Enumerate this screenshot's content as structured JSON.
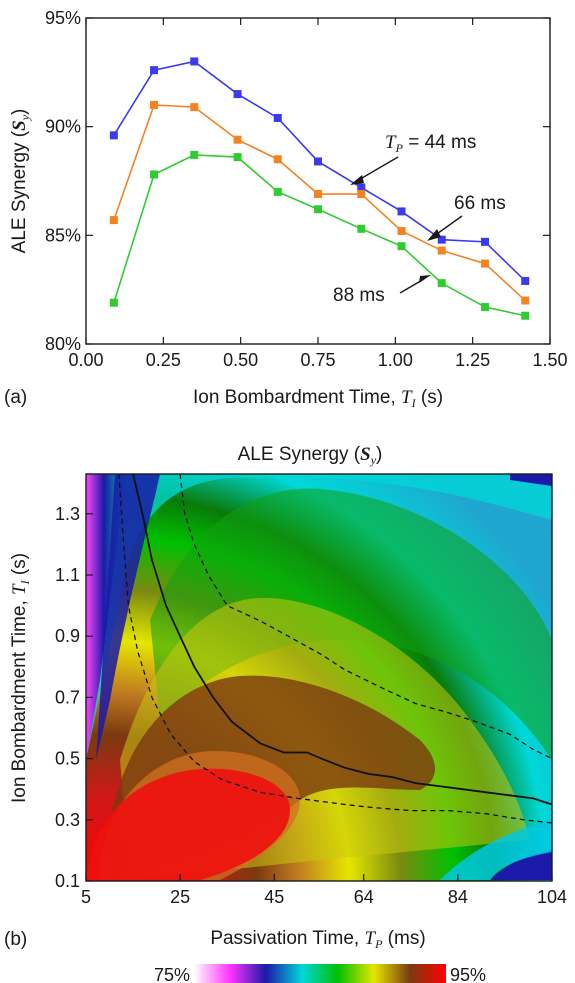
{
  "chart_data": [
    {
      "type": "line",
      "panel_label": "(a)",
      "xlabel": "Ion Bombardment Time, ",
      "xlabel_symbol": "T",
      "xlabel_sub": "I",
      "xlabel_unit": " (s)",
      "ylabel": "ALE Synergy (",
      "ylabel_symbol": "S",
      "ylabel_sub": "y",
      "ylabel_end": ")",
      "xlim": [
        0,
        1.5
      ],
      "ylim": [
        80,
        95
      ],
      "xticks": [
        "0.00",
        "0.25",
        "0.50",
        "0.75",
        "1.00",
        "1.25",
        "1.50"
      ],
      "yticks": [
        "80%",
        "85%",
        "90%",
        "95%"
      ],
      "x": [
        0.09,
        0.22,
        0.35,
        0.49,
        0.62,
        0.75,
        0.89,
        1.02,
        1.15,
        1.29,
        1.42
      ],
      "series": [
        {
          "name": "44 ms",
          "color": "#3a3aee",
          "values": [
            89.6,
            92.6,
            93.0,
            91.5,
            90.4,
            88.4,
            87.2,
            86.1,
            84.8,
            84.7,
            82.9
          ]
        },
        {
          "name": "66 ms",
          "color": "#f58220",
          "values": [
            85.7,
            91.0,
            90.9,
            89.4,
            88.5,
            86.9,
            86.9,
            85.2,
            84.3,
            83.7,
            82.0
          ]
        },
        {
          "name": "88 ms",
          "color": "#2ecc2e",
          "values": [
            81.9,
            87.8,
            88.7,
            88.6,
            87.0,
            86.2,
            85.3,
            84.5,
            82.8,
            81.7,
            81.3
          ]
        }
      ],
      "annotations": [
        {
          "prefix_symbol": "T",
          "prefix_sub": "P",
          "text": " = 44 ms"
        },
        {
          "text": "66 ms"
        },
        {
          "text": "88 ms"
        }
      ]
    },
    {
      "type": "heatmap",
      "panel_label": "(b)",
      "title": "ALE Synergy (",
      "title_symbol": "S",
      "title_sub": "y",
      "title_end": ")",
      "xlabel": "Passivation Time, ",
      "xlabel_symbol": "T",
      "xlabel_sub": "P",
      "xlabel_unit": " (ms)",
      "ylabel": "Ion Bombardment Time, ",
      "ylabel_symbol": "T",
      "ylabel_sub": "I",
      "ylabel_unit": " (s)",
      "xlim": [
        5,
        104
      ],
      "ylim": [
        0.1,
        1.43
      ],
      "xticks": [
        "5",
        "25",
        "45",
        "64",
        "84",
        "104"
      ],
      "yticks": [
        "0.1",
        "0.3",
        "0.5",
        "0.7",
        "0.9",
        "1.1",
        "1.3"
      ],
      "colorbar": {
        "min_label": "75%",
        "max_label": "95%",
        "min": 75,
        "max": 95,
        "stops": [
          "#ffffff",
          "#ff33ff",
          "#1a1aa8",
          "#00d8d8",
          "#00c000",
          "#e6e600",
          "#7a3a10",
          "#ff0000"
        ]
      },
      "peak": {
        "x": 25,
        "y": 0.3,
        "value": 93.5
      },
      "contours": [
        {
          "style": "solid",
          "points": [
            [
              15,
              1.43
            ],
            [
              17,
              1.3
            ],
            [
              19,
              1.15
            ],
            [
              22,
              1.0
            ],
            [
              25,
              0.9
            ],
            [
              28,
              0.8
            ],
            [
              32,
              0.7
            ],
            [
              36,
              0.62
            ],
            [
              42,
              0.55
            ],
            [
              47,
              0.52
            ],
            [
              52,
              0.52
            ],
            [
              55,
              0.5
            ],
            [
              60,
              0.47
            ],
            [
              65,
              0.45
            ],
            [
              70,
              0.44
            ],
            [
              75,
              0.42
            ],
            [
              80,
              0.41
            ],
            [
              85,
              0.4
            ],
            [
              90,
              0.39
            ],
            [
              95,
              0.38
            ],
            [
              100,
              0.37
            ],
            [
              104,
              0.35
            ]
          ]
        },
        {
          "style": "dashed",
          "points": [
            [
              12,
              1.43
            ],
            [
              13,
              1.2
            ],
            [
              14,
              1.0
            ],
            [
              16,
              0.85
            ],
            [
              19,
              0.7
            ],
            [
              23,
              0.58
            ],
            [
              28,
              0.49
            ],
            [
              34,
              0.43
            ],
            [
              42,
              0.39
            ],
            [
              50,
              0.37
            ],
            [
              55,
              0.36
            ],
            [
              60,
              0.35
            ],
            [
              66,
              0.34
            ],
            [
              74,
              0.33
            ],
            [
              82,
              0.33
            ],
            [
              90,
              0.32
            ],
            [
              98,
              0.3
            ],
            [
              104,
              0.29
            ]
          ]
        },
        {
          "style": "dashed",
          "points": [
            [
              25,
              1.43
            ],
            [
              26,
              1.3
            ],
            [
              28,
              1.2
            ],
            [
              31,
              1.1
            ],
            [
              35,
              1.0
            ],
            [
              42,
              0.95
            ],
            [
              48,
              0.9
            ],
            [
              55,
              0.84
            ],
            [
              60,
              0.79
            ],
            [
              68,
              0.73
            ],
            [
              75,
              0.68
            ],
            [
              82,
              0.65
            ],
            [
              88,
              0.62
            ],
            [
              95,
              0.58
            ],
            [
              100,
              0.53
            ],
            [
              104,
              0.5
            ]
          ]
        }
      ]
    }
  ]
}
